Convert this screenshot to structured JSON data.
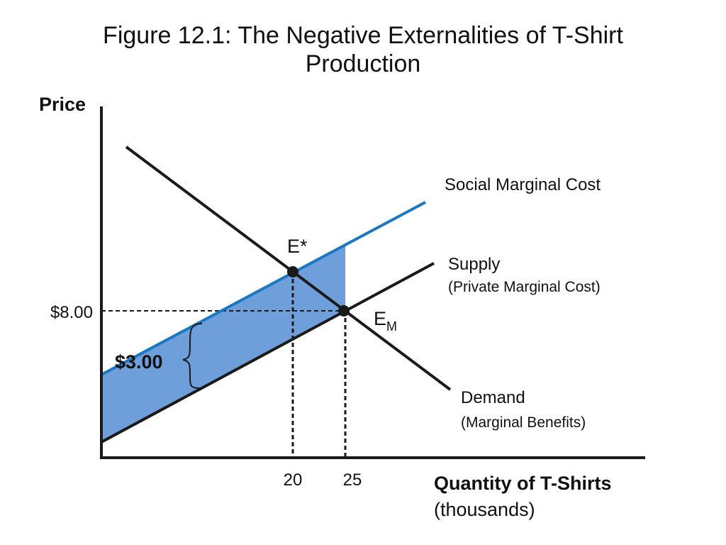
{
  "title": "Figure 12.1: The Negative Externalities of T-Shirt\nProduction",
  "chart_data": {
    "type": "line",
    "ylabel": "Price",
    "xlabel": "Quantity of T-Shirts",
    "xlabel_unit": "(thousands)",
    "x_ticks": [
      "20",
      "25"
    ],
    "y_ticks": [
      "$8.00"
    ],
    "curves": {
      "smc": {
        "name": "Social Marginal Cost",
        "color": "#1a78c2"
      },
      "supply": {
        "name": "Supply",
        "subname": "(Private Marginal Cost)",
        "color": "#1a1a1a"
      },
      "demand": {
        "name": "Demand",
        "subname": "(Marginal Benefits)",
        "color": "#1a1a1a"
      }
    },
    "points": {
      "social_optimum": {
        "label": "E*",
        "quantity": 20
      },
      "market_equilibrium": {
        "label": "E",
        "label_sub": "M",
        "quantity": 25,
        "price": 8.0
      }
    },
    "externality": {
      "label": "$3.00",
      "value": 3.0
    },
    "colors": {
      "shade": "#6f9fda",
      "axis": "#1a1a1a",
      "smc": "#1a78c2"
    }
  }
}
